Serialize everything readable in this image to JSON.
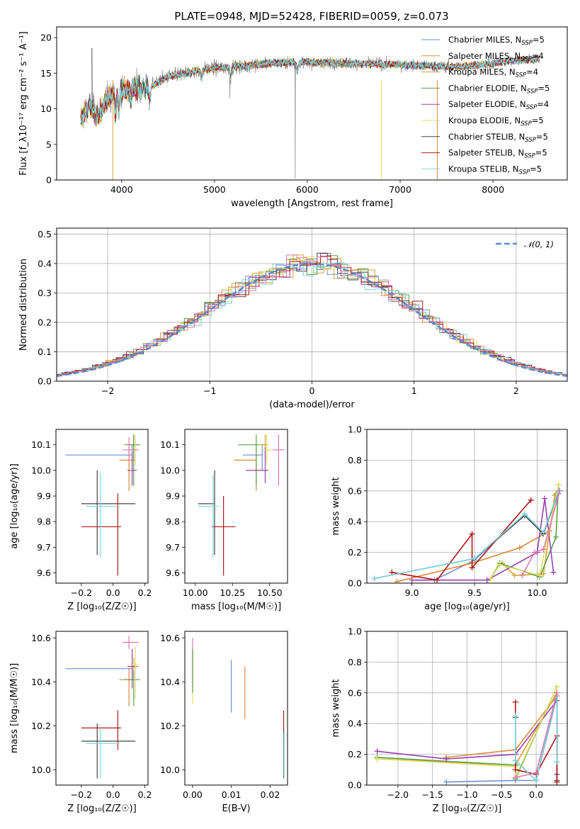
{
  "figure": {
    "title": "PLATE=0948, MJD=52428, FIBERID=0059, z=0.073"
  },
  "colors": {
    "Chabrier MILES": "#6b8fd6",
    "Salpeter MILES": "#d98b3a",
    "Kroupa MILES": "#d9a23a",
    "Chabrier ELODIE": "#5aa04a",
    "Salpeter ELODIE": "#9a3fb0",
    "Kroupa ELODIE": "#e0e060",
    "Chabrier STELIB": "#444444",
    "Salpeter STELIB": "#b01818",
    "Kroupa STELIB": "#80d8e0",
    "data": "#808080",
    "normal": "#5a8ad0",
    "pink": "#e078b0",
    "lime": "#b8e050"
  },
  "chart_data": [
    {
      "id": "spectrum",
      "type": "line",
      "xlabel": "wavelength [Angstrom, rest frame]",
      "ylabel": "Flux [f_λ10⁻¹⁷ erg cm⁻² s⁻¹ A⁻¹]",
      "xlim": [
        3300,
        8800
      ],
      "ylim": [
        0,
        21.5
      ],
      "xticks": [
        4000,
        5000,
        6000,
        7000,
        8000
      ],
      "yticks": [
        0,
        5,
        10,
        15,
        20
      ],
      "continuum": {
        "x": [
          3550,
          3650,
          3750,
          3850,
          3950,
          4050,
          4150,
          4250,
          4350,
          4500,
          4700,
          4900,
          5100,
          5300,
          5500,
          5800,
          6100,
          6400,
          6700,
          7000,
          7300,
          7600,
          7900,
          8200,
          8500
        ],
        "y": [
          8.5,
          10.5,
          9.0,
          11.5,
          12.5,
          12.8,
          13.0,
          12.8,
          13.5,
          14.5,
          15.0,
          15.6,
          15.8,
          16.0,
          16.3,
          16.5,
          16.5,
          16.4,
          16.3,
          16.2,
          16.0,
          15.9,
          16.2,
          16.8,
          17.0
        ]
      },
      "legend": [
        {
          "name": "Chabrier MILES",
          "nssp": "5"
        },
        {
          "name": "Salpeter MILES",
          "nssp": "4"
        },
        {
          "name": "Kroupa MILES",
          "nssp": "4"
        },
        {
          "name": "Chabrier ELODIE",
          "nssp": "5"
        },
        {
          "name": "Salpeter ELODIE",
          "nssp": "4"
        },
        {
          "name": "Kroupa ELODIE",
          "nssp": "5"
        },
        {
          "name": "Chabrier STELIB",
          "nssp": "5"
        },
        {
          "name": "Salpeter STELIB",
          "nssp": "5"
        },
        {
          "name": "Kroupa STELIB",
          "nssp": "5"
        }
      ],
      "legend_loc": "upper right"
    },
    {
      "id": "residuals",
      "type": "step-histogram",
      "xlabel": "(data-model)/error",
      "ylabel": "Normed distribution",
      "xlim": [
        -2.5,
        2.5
      ],
      "ylim": [
        0,
        0.52
      ],
      "xticks": [
        -2,
        -1,
        0,
        1,
        2
      ],
      "yticks": [
        0.0,
        0.1,
        0.2,
        0.3,
        0.4,
        0.5
      ],
      "bin_width": 0.1,
      "normal_label": "𝒩(0, 1)",
      "legend_loc": "upper right",
      "grid": true
    },
    {
      "id": "age_vs_Z",
      "type": "errorbar",
      "xlabel": "Z [log₁₀(Z/Z☉)]",
      "ylabel": "age  [log₁₀(age/yr)]",
      "xlim": [
        -0.36,
        0.22
      ],
      "ylim": [
        9.56,
        10.16
      ],
      "xticks": [
        -0.2,
        0.0,
        0.2
      ],
      "yticks": [
        9.6,
        9.7,
        9.8,
        9.9,
        10.0,
        10.1
      ],
      "points": [
        {
          "s": "Chabrier MILES",
          "x": 0.12,
          "xe": [
            0.42,
            0.0
          ],
          "y": 10.06,
          "ye": [
            0.05,
            0.04
          ]
        },
        {
          "s": "Salpeter MILES",
          "x": 0.1,
          "xe": [
            0.06,
            0.04
          ],
          "y": 10.04,
          "ye": [
            0.12,
            0.05
          ]
        },
        {
          "s": "Kroupa MILES",
          "x": 0.13,
          "xe": [
            0.03,
            0.03
          ],
          "y": 10.1,
          "ye": [
            0.06,
            0.04
          ]
        },
        {
          "s": "Chabrier ELODIE",
          "x": 0.13,
          "xe": [
            0.06,
            0.04
          ],
          "y": 10.1,
          "ye": [
            0.16,
            0.04
          ]
        },
        {
          "s": "Salpeter ELODIE",
          "x": 0.12,
          "xe": [
            0.03,
            0.03
          ],
          "y": 10.0,
          "ye": [
            0.06,
            0.07
          ]
        },
        {
          "s": "Kroupa ELODIE",
          "x": 0.14,
          "xe": [
            0.03,
            0.02
          ],
          "y": 10.08,
          "ye": [
            0.06,
            0.06
          ]
        },
        {
          "s": "Chabrier STELIB",
          "x": -0.1,
          "xe": [
            0.1,
            0.24
          ],
          "y": 9.87,
          "ye": [
            0.2,
            0.13
          ]
        },
        {
          "s": "Salpeter STELIB",
          "x": 0.03,
          "xe": [
            0.23,
            0.02
          ],
          "y": 9.78,
          "ye": [
            0.19,
            0.13
          ]
        },
        {
          "s": "Kroupa STELIB",
          "x": -0.08,
          "xe": [
            0.09,
            0.12
          ],
          "y": 9.86,
          "ye": [
            0.2,
            0.13
          ]
        },
        {
          "s": "pink",
          "x": 0.1,
          "xe": [
            0.04,
            0.06
          ],
          "y": 10.08,
          "ye": [
            0.04,
            0.05
          ]
        }
      ]
    },
    {
      "id": "age_vs_mass",
      "type": "errorbar",
      "xlabel": "mass [log₁₀(M/M☉)]",
      "ylabel": "",
      "xlim": [
        9.93,
        10.62
      ],
      "ylim": [
        9.56,
        10.16
      ],
      "xticks": [
        10.0,
        10.25,
        10.5
      ],
      "yticks": [
        9.6,
        9.7,
        9.8,
        9.9,
        10.0,
        10.1
      ],
      "points": [
        {
          "s": "Chabrier MILES",
          "x": 10.45,
          "xe": [
            0.13,
            0.0
          ],
          "y": 10.06,
          "ye": [
            0.06,
            0.04
          ]
        },
        {
          "s": "Salpeter MILES",
          "x": 10.41,
          "xe": [
            0.15,
            0.0
          ],
          "y": 10.04,
          "ye": [
            0.12,
            0.05
          ]
        },
        {
          "s": "Kroupa MILES",
          "x": 10.47,
          "xe": [
            0.04,
            0.02
          ],
          "y": 10.1,
          "ye": [
            0.06,
            0.04
          ]
        },
        {
          "s": "Chabrier ELODIE",
          "x": 10.41,
          "xe": [
            0.12,
            0.02
          ],
          "y": 10.1,
          "ye": [
            0.16,
            0.04
          ]
        },
        {
          "s": "Salpeter ELODIE",
          "x": 10.47,
          "xe": [
            0.13,
            0.02
          ],
          "y": 10.0,
          "ye": [
            0.05,
            0.09
          ]
        },
        {
          "s": "Kroupa ELODIE",
          "x": 10.48,
          "xe": [
            0.03,
            0.03
          ],
          "y": 10.08,
          "ye": [
            0.06,
            0.06
          ]
        },
        {
          "s": "Chabrier STELIB",
          "x": 10.13,
          "xe": [
            0.11,
            0.0
          ],
          "y": 9.87,
          "ye": [
            0.2,
            0.13
          ]
        },
        {
          "s": "Salpeter STELIB",
          "x": 10.19,
          "xe": [
            0.08,
            0.08
          ],
          "y": 9.78,
          "ye": [
            0.19,
            0.12
          ]
        },
        {
          "s": "Kroupa STELIB",
          "x": 10.12,
          "xe": [
            0.1,
            0.04
          ],
          "y": 9.86,
          "ye": [
            0.2,
            0.12
          ]
        },
        {
          "s": "pink",
          "x": 10.56,
          "xe": [
            0.04,
            0.04
          ],
          "y": 10.08,
          "ye": [
            0.14,
            0.06
          ]
        }
      ]
    },
    {
      "id": "weights_vs_age",
      "type": "line",
      "xlabel": "age  [log₁₀(age/yr)]",
      "ylabel": "mass weight",
      "xlim": [
        8.64,
        10.24
      ],
      "ylim": [
        0,
        1.0
      ],
      "xticks": [
        9.0,
        9.5,
        10.0
      ],
      "yticks": [
        0.0,
        0.2,
        0.4,
        0.6,
        0.8,
        1.0
      ],
      "grid": true,
      "series": [
        {
          "s": "Chabrier MILES",
          "x": [
            9.18,
            9.5,
            9.9,
            10.05,
            10.17
          ],
          "y": [
            0.02,
            0.15,
            0.45,
            0.33,
            0.58
          ]
        },
        {
          "s": "Salpeter MILES",
          "x": [
            8.88,
            9.48,
            9.86,
            10.1,
            10.15
          ],
          "y": [
            0.01,
            0.13,
            0.23,
            0.34,
            0.58
          ]
        },
        {
          "s": "Kroupa MILES",
          "x": [
            9.72,
            9.82,
            10.05,
            10.14,
            10.18
          ],
          "y": [
            0.13,
            0.05,
            0.06,
            0.57,
            0.6
          ]
        },
        {
          "s": "Chabrier ELODIE",
          "x": [
            9.63,
            9.7,
            10.02,
            10.15,
            10.17
          ],
          "y": [
            0.03,
            0.13,
            0.04,
            0.3,
            0.64
          ]
        },
        {
          "s": "Salpeter ELODIE",
          "x": [
            9.0,
            9.6,
            10.0,
            10.06,
            10.13
          ],
          "y": [
            0.02,
            0.02,
            0.2,
            0.55,
            0.07
          ]
        },
        {
          "s": "Kroupa ELODIE",
          "x": [
            9.63,
            9.7,
            10.02,
            10.17
          ],
          "y": [
            0.03,
            0.12,
            0.05,
            0.64
          ]
        },
        {
          "s": "Chabrier STELIB",
          "x": [
            8.7,
            9.5,
            9.9,
            10.05,
            10.17
          ],
          "y": [
            0.03,
            0.16,
            0.44,
            0.32,
            0.6
          ]
        },
        {
          "s": "Salpeter STELIB",
          "x": [
            8.84,
            9.2,
            9.48,
            9.48,
            9.95
          ],
          "y": [
            0.07,
            0.02,
            0.32,
            0.1,
            0.54
          ]
        },
        {
          "s": "Kroupa STELIB",
          "x": [
            8.7,
            9.5,
            9.9,
            10.05,
            10.17
          ],
          "y": [
            0.03,
            0.16,
            0.45,
            0.33,
            0.6
          ]
        },
        {
          "s": "pink",
          "x": [
            9.88,
            9.98,
            10.05,
            10.18
          ],
          "y": [
            0.05,
            0.2,
            0.22,
            0.6
          ]
        }
      ]
    },
    {
      "id": "mass_vs_Z",
      "type": "errorbar",
      "xlabel": "Z [log₁₀(Z/Z☉)]",
      "ylabel": "mass [log₁₀(M/M☉)]",
      "xlim": [
        -0.36,
        0.22
      ],
      "ylim": [
        9.93,
        10.63
      ],
      "xticks": [
        -0.2,
        0.0,
        0.2
      ],
      "yticks": [
        10.0,
        10.2,
        10.4,
        10.6
      ],
      "points": [
        {
          "s": "Chabrier MILES",
          "x": 0.12,
          "xe": [
            0.42,
            0.0
          ],
          "y": 10.46,
          "ye": [
            0.05,
            0.03
          ]
        },
        {
          "s": "Salpeter MILES",
          "x": 0.1,
          "xe": [
            0.06,
            0.04
          ],
          "y": 10.41,
          "ye": [
            0.12,
            0.05
          ]
        },
        {
          "s": "Kroupa MILES",
          "x": 0.13,
          "xe": [
            0.03,
            0.03
          ],
          "y": 10.47,
          "ye": [
            0.05,
            0.04
          ]
        },
        {
          "s": "Chabrier ELODIE",
          "x": 0.13,
          "xe": [
            0.06,
            0.04
          ],
          "y": 10.41,
          "ye": [
            0.12,
            0.04
          ]
        },
        {
          "s": "Salpeter ELODIE",
          "x": 0.12,
          "xe": [
            0.03,
            0.03
          ],
          "y": 10.47,
          "ye": [
            0.1,
            0.08
          ]
        },
        {
          "s": "Kroupa ELODIE",
          "x": 0.14,
          "xe": [
            0.03,
            0.02
          ],
          "y": 10.48,
          "ye": [
            0.16,
            0.08
          ]
        },
        {
          "s": "Chabrier STELIB",
          "x": -0.1,
          "xe": [
            0.1,
            0.24
          ],
          "y": 10.13,
          "ye": [
            0.17,
            0.08
          ]
        },
        {
          "s": "Salpeter STELIB",
          "x": 0.03,
          "xe": [
            0.23,
            0.02
          ],
          "y": 10.19,
          "ye": [
            0.1,
            0.08
          ]
        },
        {
          "s": "Kroupa STELIB",
          "x": -0.08,
          "xe": [
            0.09,
            0.12
          ],
          "y": 10.12,
          "ye": [
            0.16,
            0.08
          ]
        },
        {
          "s": "pink",
          "x": 0.1,
          "xe": [
            0.04,
            0.06
          ],
          "y": 10.58,
          "ye": [
            0.03,
            0.03
          ]
        }
      ]
    },
    {
      "id": "mass_vs_ebv",
      "type": "errorbar",
      "xlabel": "E(B-V)",
      "ylabel": "",
      "xlim": [
        -0.002,
        0.0245
      ],
      "ylim": [
        9.93,
        10.63
      ],
      "xticks": [
        0.0,
        0.01,
        0.02
      ],
      "yticks": [
        10.0,
        10.2,
        10.4,
        10.6
      ],
      "points": [
        {
          "s": "Chabrier MILES",
          "x": 0.01,
          "xe": [
            0,
            0
          ],
          "y": 10.38,
          "ye": [
            0.12,
            0.12
          ]
        },
        {
          "s": "Salpeter MILES",
          "x": 0.0135,
          "xe": [
            0,
            0
          ],
          "y": 10.35,
          "ye": [
            0.12,
            0.12
          ]
        },
        {
          "s": "Kroupa ELODIE",
          "x": 0.0,
          "xe": [
            0,
            0
          ],
          "y": 10.42,
          "ye": [
            0.12,
            0.12
          ]
        },
        {
          "s": "pink",
          "x": 0.0,
          "xe": [
            0,
            0
          ],
          "y": 10.5,
          "ye": [
            0.12,
            0.1
          ]
        },
        {
          "s": "Chabrier ELODIE",
          "x": 0.0,
          "xe": [
            0,
            0
          ],
          "y": 10.45,
          "ye": [
            0.1,
            0.1
          ]
        },
        {
          "s": "Salpeter STELIB",
          "x": 0.0235,
          "xe": [
            0,
            0
          ],
          "y": 10.2,
          "ye": [
            0.05,
            0.07
          ]
        },
        {
          "s": "Chabrier STELIB",
          "x": 0.0235,
          "xe": [
            0,
            0
          ],
          "y": 10.08,
          "ye": [
            0.12,
            0.1
          ]
        },
        {
          "s": "Kroupa STELIB",
          "x": 0.0236,
          "xe": [
            0,
            0
          ],
          "y": 10.07,
          "ye": [
            0.11,
            0.1
          ]
        }
      ]
    },
    {
      "id": "weights_vs_Z",
      "type": "line",
      "xlabel": "Z [log₁₀(Z/Z☉)]",
      "ylabel": "mass weight",
      "xlim": [
        -2.45,
        0.45
      ],
      "ylim": [
        0,
        1.0
      ],
      "xticks": [
        -2.0,
        -1.5,
        -1.0,
        -0.5,
        0.0
      ],
      "yticks": [
        0.0,
        0.2,
        0.4,
        0.6,
        0.8,
        1.0
      ],
      "grid": true,
      "series": [
        {
          "s": "Chabrier MILES",
          "x": [
            -1.3,
            -0.3,
            0.0,
            0.3,
            0.3
          ],
          "y": [
            0.02,
            0.03,
            0.03,
            0.58,
            0.15
          ]
        },
        {
          "s": "Salpeter MILES",
          "x": [
            -1.3,
            -0.3,
            0.3,
            0.3
          ],
          "y": [
            0.18,
            0.23,
            0.58,
            0.02
          ]
        },
        {
          "s": "Kroupa MILES",
          "x": [
            -2.3,
            -0.3,
            0.3
          ],
          "y": [
            0.17,
            0.13,
            0.6
          ]
        },
        {
          "s": "Chabrier ELODIE",
          "x": [
            -2.3,
            -0.3,
            -0.3,
            0.3
          ],
          "y": [
            0.18,
            0.13,
            0.04,
            0.64
          ]
        },
        {
          "s": "Salpeter ELODIE",
          "x": [
            -2.3,
            -1.3,
            -0.3,
            0.3,
            0.3
          ],
          "y": [
            0.22,
            0.17,
            0.2,
            0.55,
            0.07
          ]
        },
        {
          "s": "Kroupa ELODIE",
          "x": [
            -2.3,
            -0.3,
            -0.3,
            0.3
          ],
          "y": [
            0.17,
            0.12,
            0.05,
            0.64
          ]
        },
        {
          "s": "Chabrier STELIB",
          "x": [
            -0.3,
            -0.3,
            0.0,
            0.3,
            0.3
          ],
          "y": [
            0.44,
            0.16,
            0.03,
            0.6,
            0.03
          ]
        },
        {
          "s": "Salpeter STELIB",
          "x": [
            -0.3,
            -0.3,
            0.0,
            0.3,
            0.3
          ],
          "y": [
            0.54,
            0.1,
            0.07,
            0.32,
            0.02
          ]
        },
        {
          "s": "Kroupa STELIB",
          "x": [
            -0.3,
            -0.3,
            0.0,
            0.3,
            0.3
          ],
          "y": [
            0.45,
            0.16,
            0.03,
            0.6,
            0.15
          ]
        },
        {
          "s": "pink",
          "x": [
            -0.3,
            0.0,
            0.3
          ],
          "y": [
            0.05,
            0.08,
            0.6
          ]
        }
      ]
    }
  ]
}
